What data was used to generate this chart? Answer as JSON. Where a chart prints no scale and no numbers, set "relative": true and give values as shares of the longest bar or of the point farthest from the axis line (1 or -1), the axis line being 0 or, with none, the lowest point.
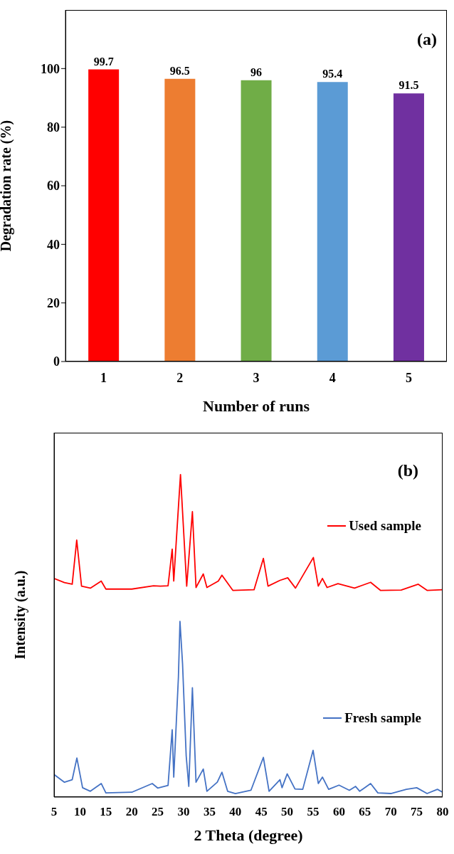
{
  "chart_data": [
    {
      "type": "bar",
      "ylabel": "Degradation rate (%)",
      "xlabel": "Number of runs",
      "annotations": [
        "(a)"
      ],
      "categories": [
        "1",
        "2",
        "3",
        "4",
        "5"
      ],
      "values": [
        99.7,
        96.5,
        96,
        95.4,
        91.5
      ],
      "colors": [
        "#ff0000",
        "#ed7d31",
        "#70ad47",
        "#5b9bd5",
        "#7030a0"
      ],
      "ylim": [
        0,
        120
      ],
      "yticks": [
        0,
        20,
        40,
        60,
        80,
        100
      ],
      "data_labels": true,
      "grid": false
    },
    {
      "type": "line",
      "relative": true,
      "ylabel": "Intensity (a.u.)",
      "xlabel": "2 Theta (degree)",
      "annotations": [
        "(b)"
      ],
      "xlim": [
        5,
        80
      ],
      "xticks": [
        5,
        10,
        15,
        20,
        25,
        30,
        35,
        40,
        45,
        50,
        55,
        60,
        65,
        70,
        75,
        80
      ],
      "legend": "right",
      "grid": false,
      "marker": "none",
      "line_style": "solid",
      "series": [
        {
          "name": "Used sample",
          "color": "#ff0000",
          "x": [
            5,
            7,
            8.5,
            9.37,
            10.3,
            12,
            14.1,
            15,
            20,
            24.2,
            25.5,
            27,
            27.8,
            28.1,
            29.4,
            30.6,
            31.7,
            32.4,
            33.8,
            34.5,
            36.7,
            37.4,
            39.5,
            43.6,
            45.4,
            46.3,
            48.6,
            50.1,
            51.6,
            55.05,
            56,
            56.8,
            57.7,
            59.8,
            63,
            66.1,
            68,
            72,
            75.3,
            77,
            80
          ],
          "values": [
            0.678,
            0.665,
            0.66,
            0.797,
            0.654,
            0.648,
            0.67,
            0.645,
            0.645,
            0.655,
            0.654,
            0.655,
            0.769,
            0.67,
            1.0,
            0.654,
            0.885,
            0.65,
            0.692,
            0.65,
            0.67,
            0.688,
            0.641,
            0.643,
            0.74,
            0.654,
            0.672,
            0.68,
            0.648,
            0.743,
            0.654,
            0.678,
            0.65,
            0.662,
            0.648,
            0.666,
            0.641,
            0.642,
            0.66,
            0.641,
            0.643
          ]
        },
        {
          "name": "Fresh sample",
          "color": "#4472c4",
          "x": [
            5,
            7,
            8.5,
            9.4,
            10.5,
            12,
            14.1,
            15,
            20,
            23.95,
            25,
            27,
            27.8,
            28.1,
            29,
            29.3,
            29.8,
            30.5,
            31,
            31.7,
            32.4,
            33.8,
            34.5,
            36.5,
            37.4,
            38.5,
            40,
            43,
            45.4,
            46.5,
            48.6,
            49,
            50,
            51.5,
            53,
            55,
            56,
            56.8,
            58,
            60,
            62,
            63.2,
            64,
            66.1,
            67.5,
            70,
            73,
            75,
            77,
            79,
            80
          ],
          "values": [
            0.07,
            0.046,
            0.054,
            0.121,
            0.029,
            0.018,
            0.042,
            0.013,
            0.015,
            0.042,
            0.028,
            0.036,
            0.209,
            0.062,
            0.372,
            0.545,
            0.413,
            0.128,
            0.033,
            0.339,
            0.046,
            0.087,
            0.018,
            0.046,
            0.077,
            0.018,
            0.011,
            0.021,
            0.123,
            0.018,
            0.054,
            0.029,
            0.072,
            0.025,
            0.024,
            0.145,
            0.042,
            0.062,
            0.024,
            0.037,
            0.021,
            0.033,
            0.018,
            0.042,
            0.013,
            0.011,
            0.024,
            0.029,
            0.011,
            0.024,
            0.015
          ]
        }
      ]
    }
  ]
}
